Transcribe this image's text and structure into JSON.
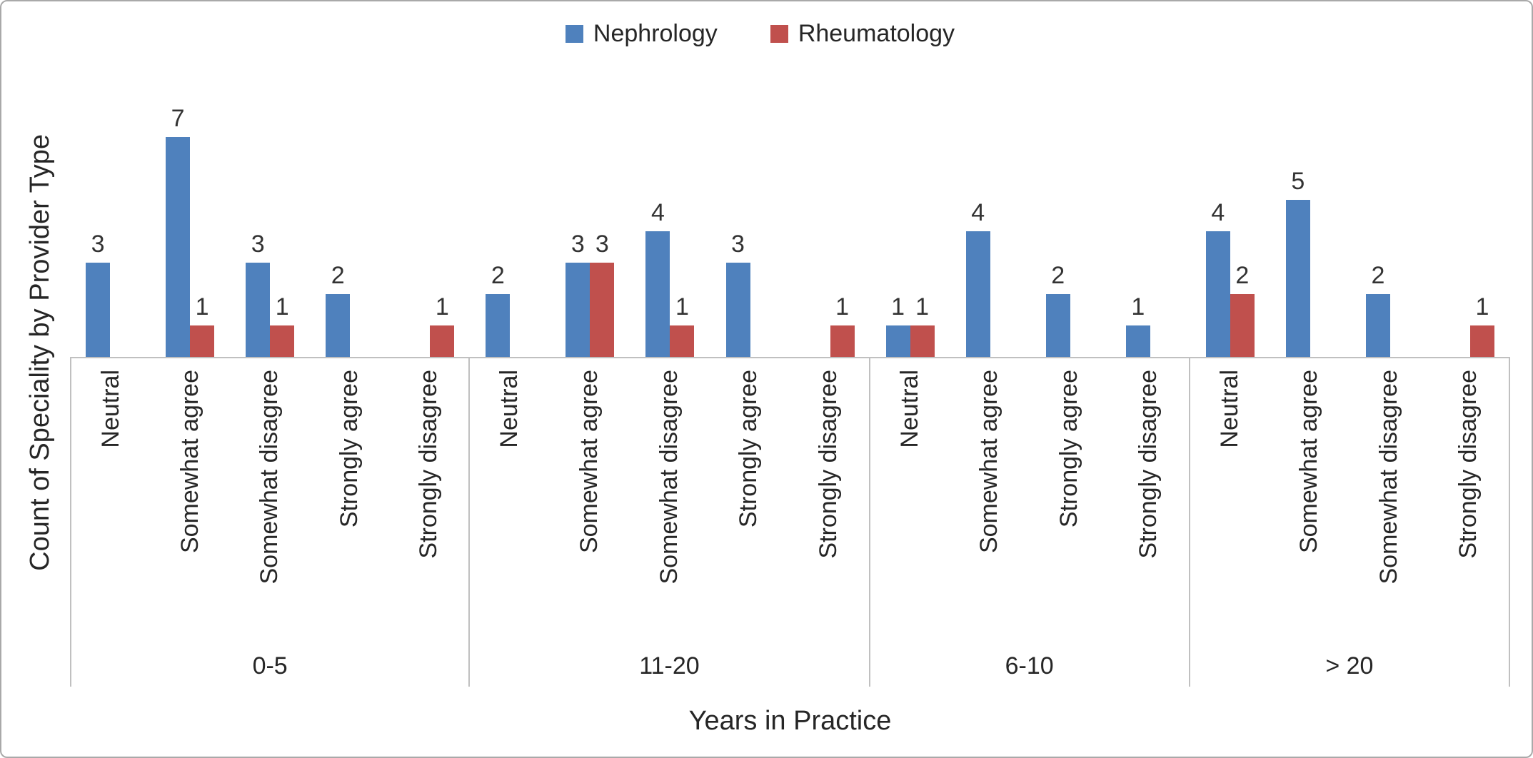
{
  "chart_data": {
    "type": "bar",
    "title": "",
    "xlabel": "Years in Practice",
    "ylabel": "Count of Speciality by Provider Type",
    "legend_position": "top",
    "grid": false,
    "ylim": [
      0,
      7
    ],
    "series": [
      {
        "name": "Nephrology",
        "color": "#4F81BD"
      },
      {
        "name": "Rheumatology",
        "color": "#C0504D"
      }
    ],
    "groups": [
      {
        "label": "0-5",
        "categories": [
          {
            "label": "Neutral",
            "values": [
              3,
              null
            ]
          },
          {
            "label": "Somewhat agree",
            "values": [
              7,
              1
            ]
          },
          {
            "label": "Somewhat disagree",
            "values": [
              3,
              1
            ]
          },
          {
            "label": "Strongly agree",
            "values": [
              2,
              null
            ]
          },
          {
            "label": "Strongly disagree",
            "values": [
              null,
              1
            ]
          }
        ]
      },
      {
        "label": "11-20",
        "categories": [
          {
            "label": "Neutral",
            "values": [
              2,
              null
            ]
          },
          {
            "label": "Somewhat agree",
            "values": [
              3,
              3
            ]
          },
          {
            "label": "Somewhat disagree",
            "values": [
              4,
              1
            ]
          },
          {
            "label": "Strongly agree",
            "values": [
              3,
              null
            ]
          },
          {
            "label": "Strongly disagree",
            "values": [
              null,
              1
            ]
          }
        ]
      },
      {
        "label": "6-10",
        "categories": [
          {
            "label": "Neutral",
            "values": [
              1,
              1
            ]
          },
          {
            "label": "Somewhat agree",
            "values": [
              4,
              null
            ]
          },
          {
            "label": "Strongly agree",
            "values": [
              2,
              null
            ]
          },
          {
            "label": "Strongly disagree",
            "values": [
              1,
              null
            ]
          }
        ]
      },
      {
        "label": "> 20",
        "categories": [
          {
            "label": "Neutral",
            "values": [
              4,
              2
            ]
          },
          {
            "label": "Somewhat agree",
            "values": [
              5,
              null
            ]
          },
          {
            "label": "Somewhat disagree",
            "values": [
              2,
              null
            ]
          },
          {
            "label": "Strongly disagree",
            "values": [
              null,
              1
            ]
          }
        ]
      }
    ]
  }
}
